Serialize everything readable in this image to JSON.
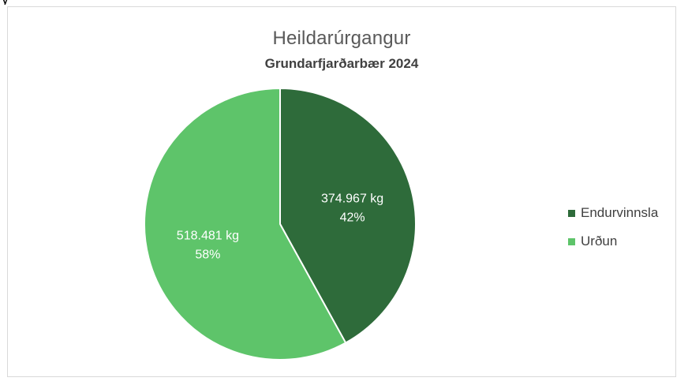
{
  "chart_data": {
    "type": "pie",
    "title": "Heildarúrgangur",
    "subtitle": "Grundarfjarðarbær 2024",
    "categories": [
      "Endurvinnsla",
      "Urðun"
    ],
    "values": [
      374967,
      518481
    ],
    "value_labels": [
      "374.967 kg",
      "518.481 kg"
    ],
    "percent_labels": [
      "42%",
      "58%"
    ],
    "colors": [
      "#2e6b3a",
      "#5ec46a"
    ],
    "legend_position": "right"
  }
}
